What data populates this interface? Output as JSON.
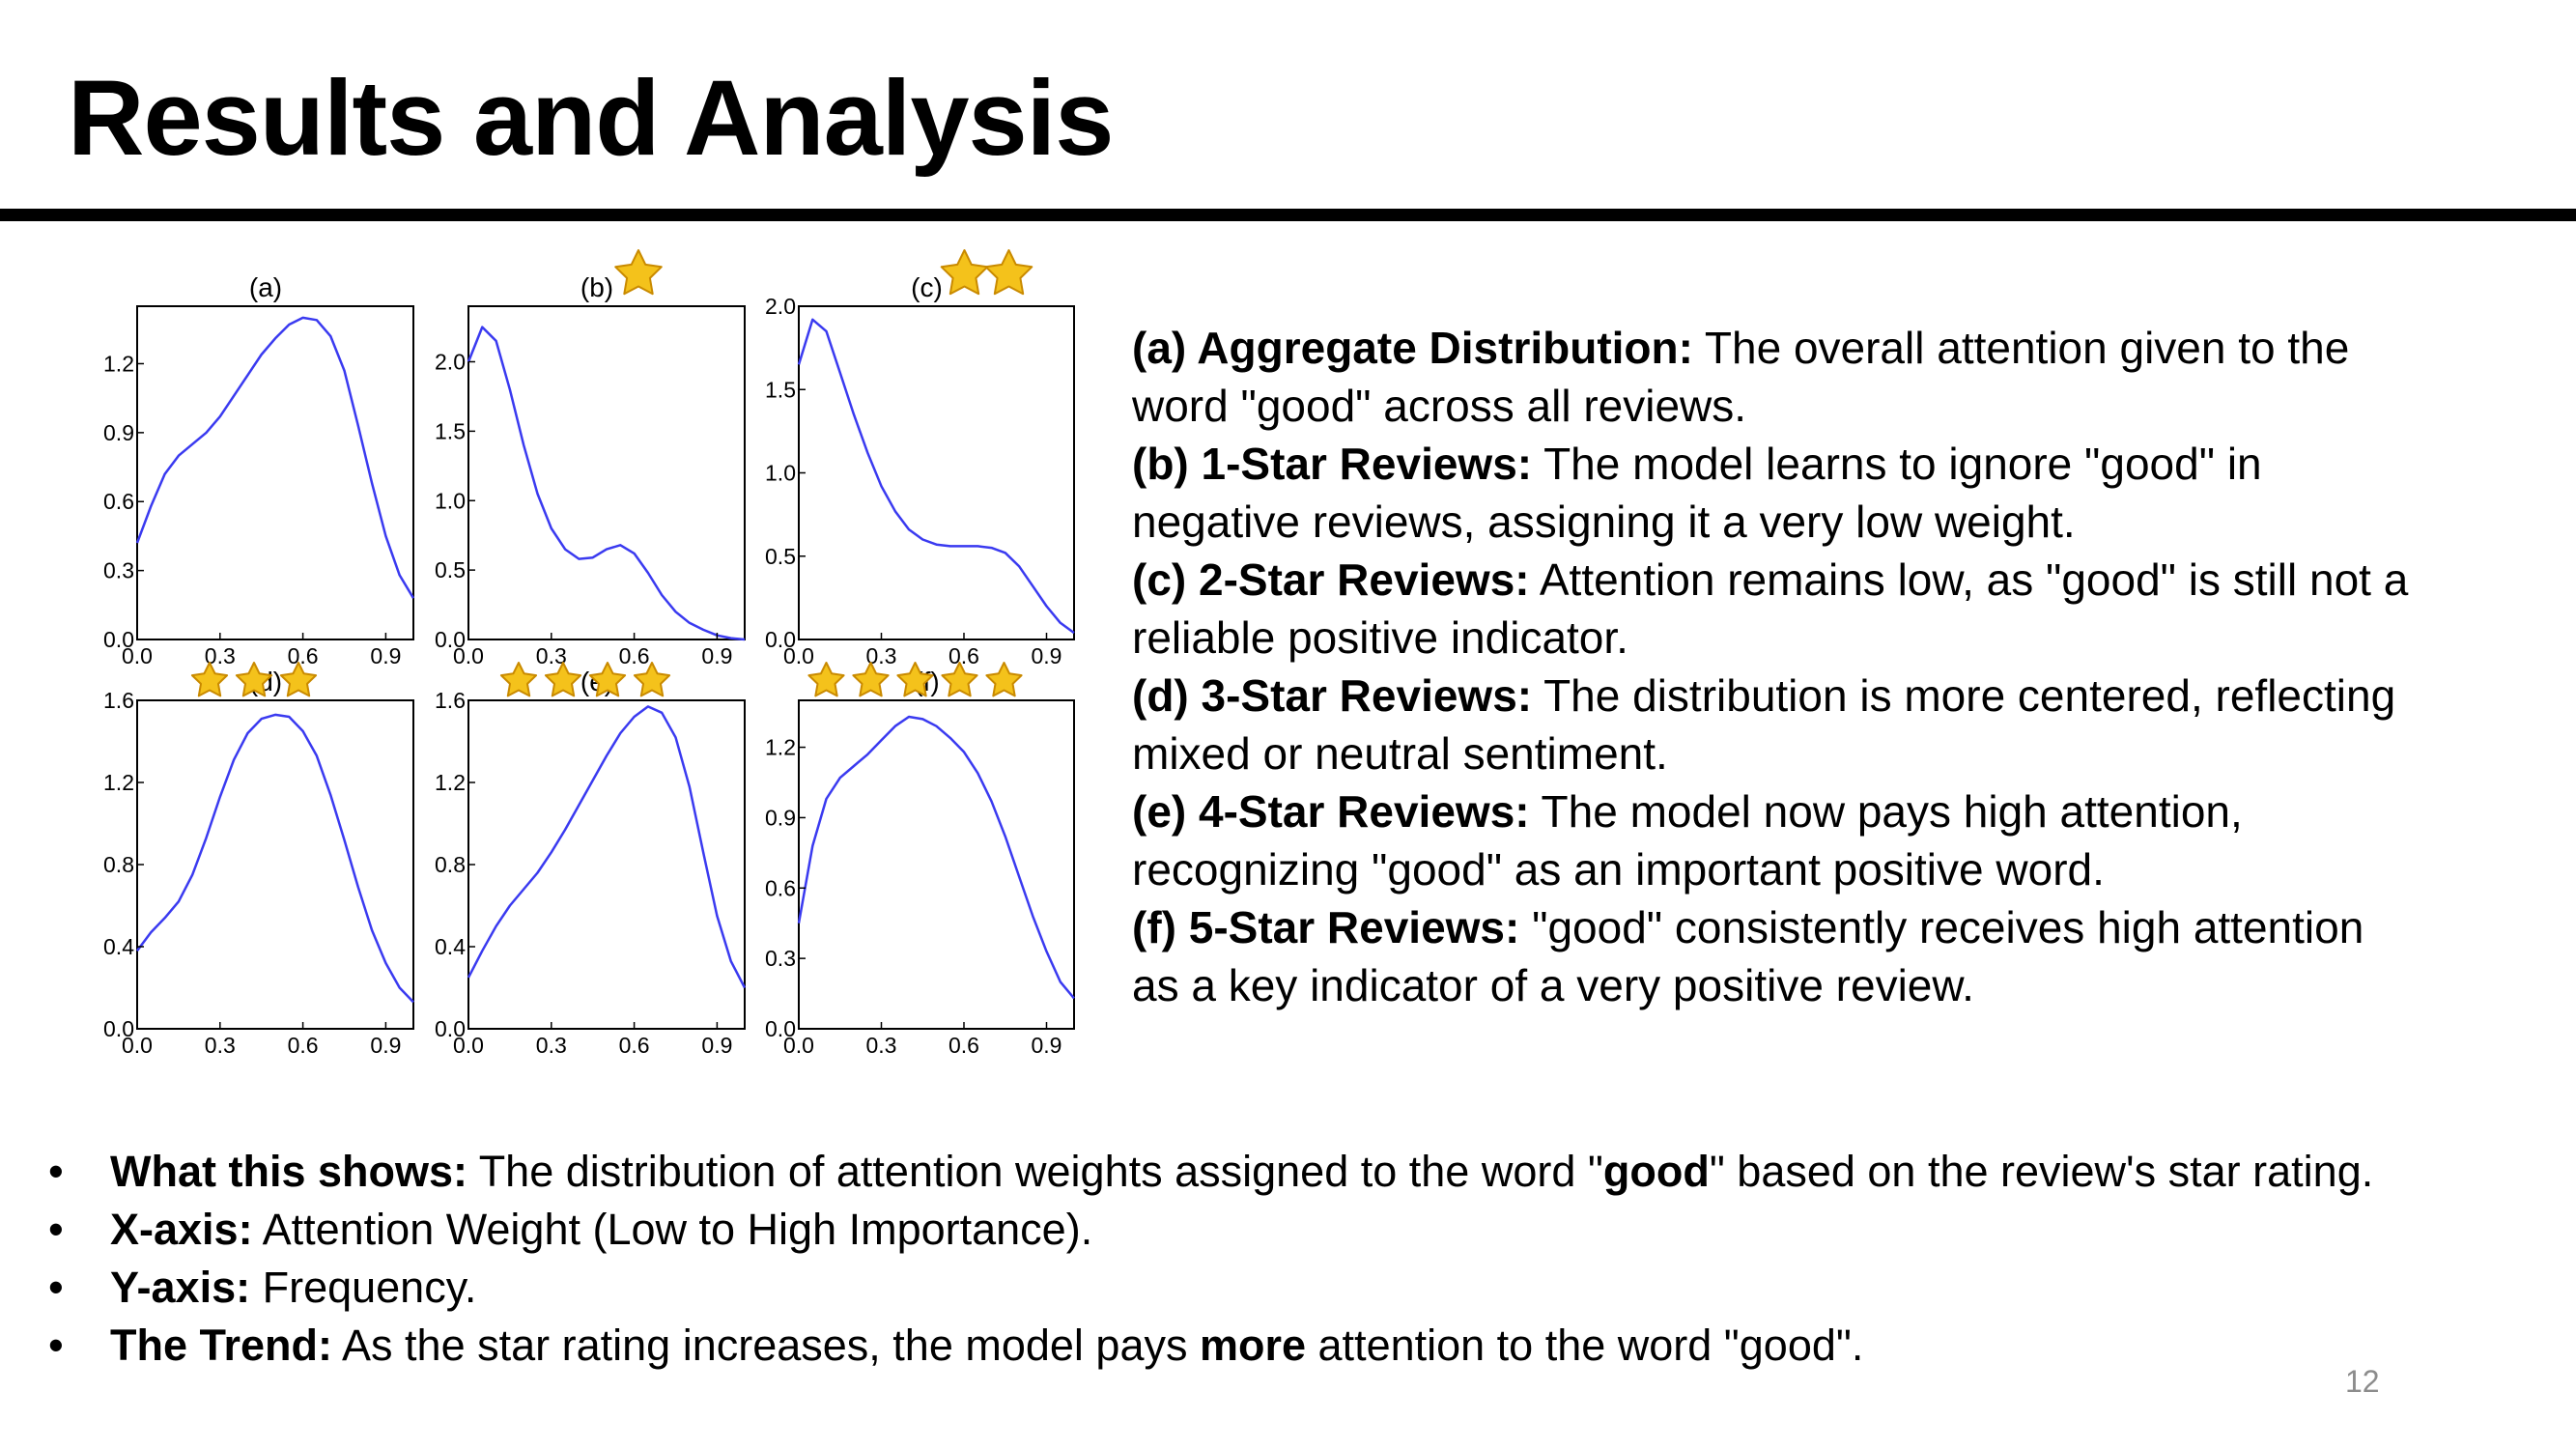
{
  "slide": {
    "title": "Results and Analysis",
    "page_number": "12"
  },
  "chart_data": [
    {
      "type": "line",
      "label": "(a)",
      "stars": 0,
      "xlim": [
        0.0,
        1.0
      ],
      "ylim": [
        0.0,
        1.45
      ],
      "xticks": [
        "0.0",
        "0.3",
        "0.6",
        "0.9"
      ],
      "yticks": [
        "0.0",
        "0.3",
        "0.6",
        "0.9",
        "1.2"
      ],
      "ytick_values": [
        0,
        0.3,
        0.6,
        0.9,
        1.2
      ],
      "x": [
        0.0,
        0.05,
        0.1,
        0.15,
        0.2,
        0.25,
        0.3,
        0.35,
        0.4,
        0.45,
        0.5,
        0.55,
        0.6,
        0.65,
        0.7,
        0.75,
        0.8,
        0.85,
        0.9,
        0.95,
        1.0
      ],
      "values": [
        0.42,
        0.58,
        0.72,
        0.8,
        0.85,
        0.9,
        0.97,
        1.06,
        1.15,
        1.24,
        1.31,
        1.37,
        1.4,
        1.39,
        1.32,
        1.17,
        0.93,
        0.68,
        0.45,
        0.28,
        0.18
      ]
    },
    {
      "type": "line",
      "label": "(b)",
      "stars": 1,
      "xlim": [
        0.0,
        1.0
      ],
      "ylim": [
        0.0,
        2.4
      ],
      "xticks": [
        "0.0",
        "0.3",
        "0.6",
        "0.9"
      ],
      "yticks": [
        "0.0",
        "0.5",
        "1.0",
        "1.5",
        "2.0"
      ],
      "ytick_values": [
        0,
        0.5,
        1.0,
        1.5,
        2.0
      ],
      "x": [
        0.0,
        0.05,
        0.1,
        0.15,
        0.2,
        0.25,
        0.3,
        0.35,
        0.4,
        0.45,
        0.5,
        0.55,
        0.6,
        0.65,
        0.7,
        0.75,
        0.8,
        0.85,
        0.9,
        0.95,
        1.0
      ],
      "values": [
        2.0,
        2.25,
        2.15,
        1.8,
        1.4,
        1.05,
        0.8,
        0.65,
        0.58,
        0.59,
        0.65,
        0.68,
        0.62,
        0.48,
        0.32,
        0.2,
        0.12,
        0.07,
        0.03,
        0.01,
        0.0
      ]
    },
    {
      "type": "line",
      "label": "(c)",
      "stars": 2,
      "xlim": [
        0.0,
        1.0
      ],
      "ylim": [
        0.0,
        2.0
      ],
      "xticks": [
        "0.0",
        "0.3",
        "0.6",
        "0.9"
      ],
      "yticks": [
        "0.0",
        "0.5",
        "1.0",
        "1.5",
        "2.0"
      ],
      "ytick_values": [
        0,
        0.5,
        1.0,
        1.5,
        2.0
      ],
      "x": [
        0.0,
        0.05,
        0.1,
        0.15,
        0.2,
        0.25,
        0.3,
        0.35,
        0.4,
        0.45,
        0.5,
        0.55,
        0.6,
        0.65,
        0.7,
        0.75,
        0.8,
        0.85,
        0.9,
        0.95,
        1.0
      ],
      "values": [
        1.65,
        1.92,
        1.85,
        1.6,
        1.35,
        1.12,
        0.92,
        0.77,
        0.66,
        0.6,
        0.57,
        0.56,
        0.56,
        0.56,
        0.55,
        0.52,
        0.44,
        0.32,
        0.2,
        0.1,
        0.04
      ]
    },
    {
      "type": "line",
      "label": "(d)",
      "stars": 3,
      "xlim": [
        0.0,
        1.0
      ],
      "ylim": [
        0.0,
        1.6
      ],
      "xticks": [
        "0.0",
        "0.3",
        "0.6",
        "0.9"
      ],
      "yticks": [
        "0.0",
        "0.4",
        "0.8",
        "1.2",
        "1.6"
      ],
      "ytick_values": [
        0,
        0.4,
        0.8,
        1.2,
        1.6
      ],
      "x": [
        0.0,
        0.05,
        0.1,
        0.15,
        0.2,
        0.25,
        0.3,
        0.35,
        0.4,
        0.45,
        0.5,
        0.55,
        0.6,
        0.65,
        0.7,
        0.75,
        0.8,
        0.85,
        0.9,
        0.95,
        1.0
      ],
      "values": [
        0.38,
        0.47,
        0.54,
        0.62,
        0.75,
        0.93,
        1.13,
        1.31,
        1.44,
        1.51,
        1.53,
        1.52,
        1.45,
        1.33,
        1.14,
        0.92,
        0.69,
        0.48,
        0.32,
        0.2,
        0.13
      ]
    },
    {
      "type": "line",
      "label": "(e)",
      "stars": 4,
      "xlim": [
        0.0,
        1.0
      ],
      "ylim": [
        0.0,
        1.6
      ],
      "xticks": [
        "0.0",
        "0.3",
        "0.6",
        "0.9"
      ],
      "yticks": [
        "0.0",
        "0.4",
        "0.8",
        "1.2",
        "1.6"
      ],
      "ytick_values": [
        0,
        0.4,
        0.8,
        1.2,
        1.6
      ],
      "x": [
        0.0,
        0.05,
        0.1,
        0.15,
        0.2,
        0.25,
        0.3,
        0.35,
        0.4,
        0.45,
        0.5,
        0.55,
        0.6,
        0.65,
        0.7,
        0.75,
        0.8,
        0.85,
        0.9,
        0.95,
        1.0
      ],
      "values": [
        0.25,
        0.38,
        0.5,
        0.6,
        0.68,
        0.76,
        0.86,
        0.97,
        1.09,
        1.21,
        1.33,
        1.44,
        1.52,
        1.57,
        1.54,
        1.42,
        1.18,
        0.86,
        0.55,
        0.33,
        0.2
      ]
    },
    {
      "type": "line",
      "label": "(f)",
      "stars": 5,
      "xlim": [
        0.0,
        1.0
      ],
      "ylim": [
        0.0,
        1.4
      ],
      "xticks": [
        "0.0",
        "0.3",
        "0.6",
        "0.9"
      ],
      "yticks": [
        "0.0",
        "0.3",
        "0.6",
        "0.9",
        "1.2"
      ],
      "ytick_values": [
        0,
        0.3,
        0.6,
        0.9,
        1.2
      ],
      "x": [
        0.0,
        0.05,
        0.1,
        0.15,
        0.2,
        0.25,
        0.3,
        0.35,
        0.4,
        0.45,
        0.5,
        0.55,
        0.6,
        0.65,
        0.7,
        0.75,
        0.8,
        0.85,
        0.9,
        0.95,
        1.0
      ],
      "values": [
        0.45,
        0.78,
        0.98,
        1.07,
        1.12,
        1.17,
        1.23,
        1.29,
        1.33,
        1.32,
        1.29,
        1.24,
        1.18,
        1.09,
        0.97,
        0.82,
        0.65,
        0.48,
        0.33,
        0.2,
        0.13
      ]
    }
  ],
  "descriptions": [
    {
      "label": "(a) Aggregate Distribution:",
      "text": " The overall attention given to the",
      "cont": "word \"good\" across all reviews."
    },
    {
      "label": "(b) 1-Star Reviews:",
      "text": " The model learns to ignore \"good\" in",
      "cont": "negative reviews, assigning it a very low weight."
    },
    {
      "label": "(c) 2-Star Reviews:",
      "text": " Attention remains low, as \"good\" is still not a",
      "cont": "reliable positive indicator."
    },
    {
      "label": "(d) 3-Star Reviews:",
      "text": " The distribution is more centered, reflecting",
      "cont": "mixed or neutral sentiment."
    },
    {
      "label": "(e) 4-Star Reviews:",
      "text": " The model now pays high attention,",
      "cont": "recognizing \"good\" as an important positive word."
    },
    {
      "label": "(f) 5-Star Reviews:",
      "text": " \"good\" consistently receives high attention",
      "cont": "as a key indicator of a very positive review."
    }
  ],
  "bullets": {
    "marker": "•",
    "what": {
      "label": "What this shows:",
      "pre": " The distribution of attention weights assigned to the word \"",
      "bold": "good",
      "post": "\" based on the review's star rating."
    },
    "xaxis": {
      "label": "X-axis:",
      "text": " Attention Weight (Low to High Importance)."
    },
    "yaxis": {
      "label": "Y-axis:",
      "text": " Frequency."
    },
    "trend": {
      "label": "The Trend:",
      "pre": " As the star rating increases, the model pays ",
      "bold": "more",
      "post": " attention to the word \"good\"."
    }
  },
  "colors": {
    "curve": "#3a3af0",
    "star": "#f4c21b",
    "star_outline": "#c98a00"
  },
  "icons": {
    "rating": "star-icon"
  }
}
